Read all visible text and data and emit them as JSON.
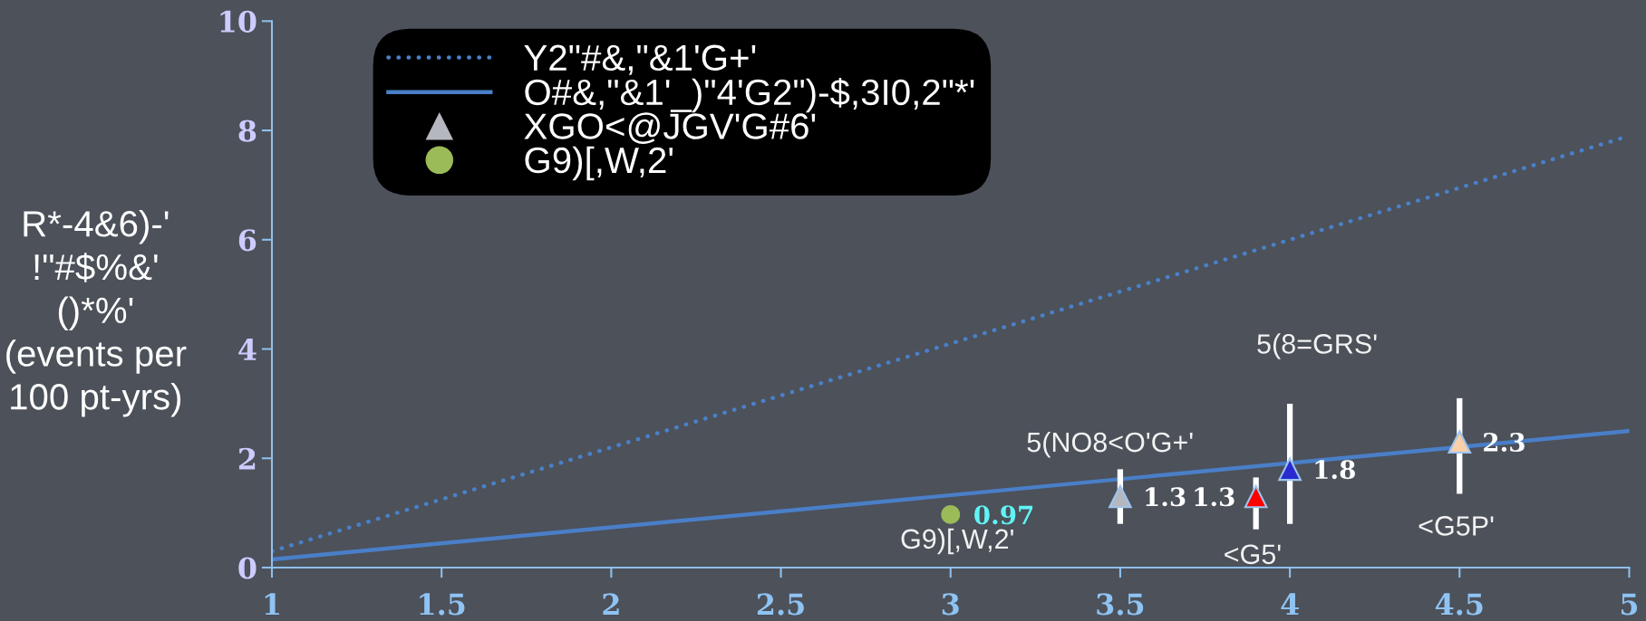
{
  "chart_data": {
    "type": "scatter",
    "ylabel": "R*-4&6)-'\n!\"#$%&'\n()*%'\n(events per\n100 pt-yrs)",
    "xlim": [
      1,
      5
    ],
    "ylim": [
      0,
      10
    ],
    "xticks": [
      1,
      1.5,
      2,
      2.5,
      3,
      3.5,
      4,
      4.5,
      5
    ],
    "yticks": [
      0,
      2,
      4,
      6,
      8,
      10
    ],
    "grid": false,
    "legend": "top left",
    "series": [
      {
        "name": "Y2\"#&,\"&1'G+'",
        "type": "line",
        "line_style": "dotted",
        "color": "#4a80c8",
        "x": [
          1,
          5
        ],
        "values": [
          0.3,
          7.9
        ]
      },
      {
        "name": "O#&,\"&1'_)\"4'G2\")-$,3I0,2\"*'",
        "type": "line",
        "line_style": "solid",
        "color": "#4a7fc8",
        "x": [
          1,
          5
        ],
        "values": [
          0.15,
          2.5
        ]
      },
      {
        "name": "XGO<@JGV'G#6'",
        "marker": "triangle",
        "colors": [
          "#b4b8be",
          "#ff0000",
          "#2a2ad0",
          "#f8cfa8"
        ],
        "x": [
          3.5,
          3.9,
          4,
          4.5
        ],
        "values": [
          1.3,
          1.3,
          1.8,
          2.3
        ],
        "errors": [
          [
            0.8,
            1.8
          ],
          [
            0.7,
            1.65
          ],
          [
            0.8,
            3.0
          ],
          [
            1.35,
            3.1
          ]
        ],
        "value_labels": [
          "1.3",
          "1.3",
          "1.8",
          "2.3"
        ]
      },
      {
        "name": "G9)[,W,2'",
        "marker": "circle",
        "color": "#9bbb59",
        "x": [
          3
        ],
        "values": [
          0.97
        ],
        "value_labels": [
          "0.97"
        ]
      }
    ],
    "annotations": [
      "5(NO8<O'G+'",
      "<G5'",
      "5(8=GRS'",
      "<G5P'",
      "G9)[,W,2'"
    ]
  }
}
